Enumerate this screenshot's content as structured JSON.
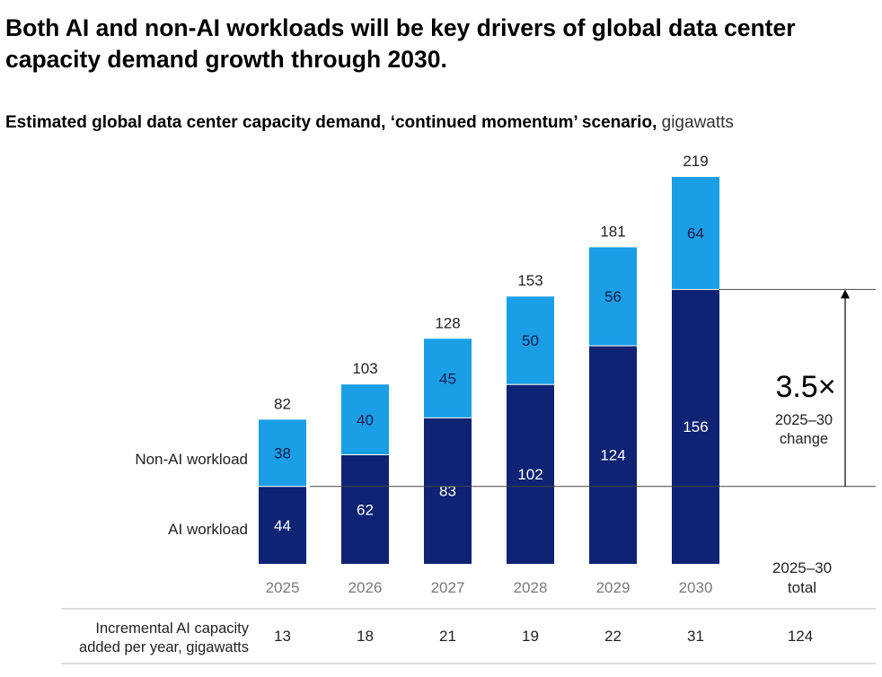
{
  "header": {
    "title": "Both AI and non-AI workloads will be key drivers of global data center capacity demand growth through 2030.",
    "subtitle_bold": "Estimated global data center capacity demand, ‘continued momentum’ scenario,",
    "subtitle_unit": "gigawatts"
  },
  "colors": {
    "ai": "#0e2373",
    "non_ai": "#1a9ee6",
    "axis_text": "#7a7a7a",
    "rule": "#999999"
  },
  "chart_data": {
    "type": "bar",
    "stacked": true,
    "categories": [
      "2025",
      "2026",
      "2027",
      "2028",
      "2029",
      "2030"
    ],
    "series": [
      {
        "name": "AI workload",
        "values": [
          44,
          62,
          83,
          102,
          124,
          156
        ]
      },
      {
        "name": "Non-AI workload",
        "values": [
          38,
          40,
          45,
          50,
          56,
          64
        ]
      }
    ],
    "totals": [
      82,
      103,
      128,
      153,
      181,
      219
    ],
    "ylim": [
      0,
      219
    ],
    "legend_placement": "left",
    "annotation": {
      "multiplier": "3.5×",
      "line1": "2025–30",
      "line2": "change"
    },
    "total_header": {
      "line1": "2025–30",
      "line2": "total"
    },
    "table": {
      "label_line1": "Incremental AI capacity",
      "label_line2": "added per year, gigawatts",
      "values": [
        "13",
        "18",
        "21",
        "19",
        "22",
        "31"
      ],
      "total": "124"
    }
  }
}
